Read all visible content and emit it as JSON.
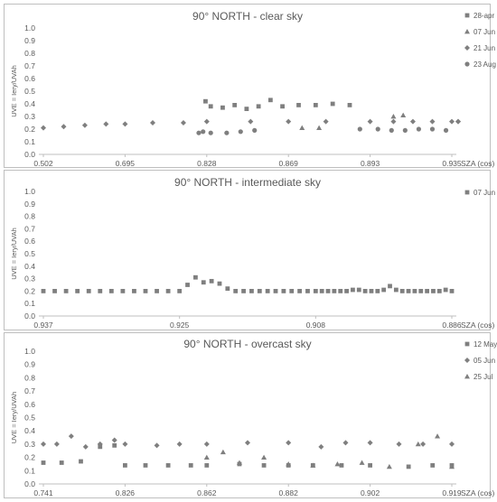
{
  "chart_data": [
    {
      "type": "scatter",
      "title": "90° NORTH - clear sky",
      "ylabel": "UVE = Iery/UVAh",
      "xlabel": "SZA (cos)",
      "ylim": [
        0,
        1.0
      ],
      "yticks": [
        "0.0",
        "0.1",
        "0.2",
        "0.3",
        "0.4",
        "0.5",
        "0.6",
        "0.7",
        "0.8",
        "0.9",
        "1.0"
      ],
      "xticks": [
        "0.502",
        "0.695",
        "0.828",
        "0.869",
        "0.893",
        "0.935"
      ],
      "legend_position": "right",
      "series": [
        {
          "name": "28-apr",
          "marker": "square",
          "color": "#7f7f7f",
          "x": [
            0.826,
            0.83,
            0.836,
            0.842,
            0.848,
            0.854,
            0.86,
            0.866,
            0.872,
            0.877,
            0.882,
            0.887
          ],
          "y": [
            0.42,
            0.38,
            0.37,
            0.39,
            0.36,
            0.38,
            0.43,
            0.38,
            0.39,
            0.39,
            0.4,
            0.39
          ]
        },
        {
          "name": "07 Jun",
          "marker": "triangle",
          "color": "#7f7f7f",
          "x": [
            0.873,
            0.878,
            0.905,
            0.91
          ],
          "y": [
            0.21,
            0.21,
            0.3,
            0.31
          ]
        },
        {
          "name": "21 Jun",
          "marker": "diamond",
          "color": "#7f7f7f",
          "x": [
            0.502,
            0.55,
            0.6,
            0.65,
            0.695,
            0.74,
            0.79,
            0.828,
            0.85,
            0.869,
            0.88,
            0.893,
            0.905,
            0.915,
            0.925,
            0.935,
            0.945,
            0.955
          ],
          "y": [
            0.21,
            0.22,
            0.23,
            0.24,
            0.24,
            0.25,
            0.25,
            0.26,
            0.26,
            0.26,
            0.26,
            0.26,
            0.26,
            0.26,
            0.26,
            0.26,
            0.26,
            0.26
          ]
        },
        {
          "name": "23 Aug",
          "marker": "circle",
          "color": "#7f7f7f",
          "x": [
            0.815,
            0.822,
            0.83,
            0.838,
            0.845,
            0.852,
            0.89,
            0.897,
            0.904,
            0.911,
            0.918,
            0.925,
            0.932
          ],
          "y": [
            0.17,
            0.18,
            0.17,
            0.17,
            0.18,
            0.19,
            0.2,
            0.2,
            0.19,
            0.19,
            0.2,
            0.2,
            0.19
          ]
        }
      ]
    },
    {
      "type": "scatter",
      "title": "90° NORTH - intermediate sky",
      "ylabel": "UVE = Iery/UVAh",
      "xlabel": "SZA (cos)",
      "ylim": [
        0,
        1.0
      ],
      "yticks": [
        "0.0",
        "0.1",
        "0.2",
        "0.3",
        "0.4",
        "0.5",
        "0.6",
        "0.7",
        "0.8",
        "0.9",
        "1.0"
      ],
      "xticks": [
        "0.937",
        "0.925",
        "0.908",
        "0.886"
      ],
      "legend_position": "right",
      "series": [
        {
          "name": "07 Jun",
          "marker": "square",
          "color": "#7f7f7f",
          "x": [
            0.937,
            0.936,
            0.935,
            0.934,
            0.933,
            0.932,
            0.931,
            0.93,
            0.929,
            0.928,
            0.927,
            0.926,
            0.925,
            0.924,
            0.923,
            0.922,
            0.921,
            0.92,
            0.919,
            0.918,
            0.917,
            0.916,
            0.915,
            0.914,
            0.913,
            0.912,
            0.911,
            0.91,
            0.909,
            0.908,
            0.907,
            0.906,
            0.905,
            0.904,
            0.903,
            0.902,
            0.901,
            0.9,
            0.899,
            0.898,
            0.897,
            0.896,
            0.895,
            0.894,
            0.893,
            0.892,
            0.891,
            0.89,
            0.889,
            0.888,
            0.887,
            0.886
          ],
          "y": [
            0.2,
            0.2,
            0.2,
            0.2,
            0.2,
            0.2,
            0.2,
            0.2,
            0.2,
            0.2,
            0.2,
            0.2,
            0.2,
            0.25,
            0.31,
            0.27,
            0.28,
            0.26,
            0.22,
            0.2,
            0.2,
            0.2,
            0.2,
            0.2,
            0.2,
            0.2,
            0.2,
            0.2,
            0.2,
            0.2,
            0.2,
            0.2,
            0.2,
            0.2,
            0.2,
            0.21,
            0.21,
            0.2,
            0.2,
            0.2,
            0.21,
            0.24,
            0.21,
            0.2,
            0.2,
            0.2,
            0.2,
            0.2,
            0.2,
            0.2,
            0.21,
            0.2
          ]
        }
      ]
    },
    {
      "type": "scatter",
      "title": "90° NORTH - overcast sky",
      "ylabel": "UVE = Iery/UVAh",
      "xlabel": "SZA (cos)",
      "ylim": [
        0,
        1.0
      ],
      "yticks": [
        "0.0",
        "0.1",
        "0.2",
        "0.3",
        "0.4",
        "0.5",
        "0.6",
        "0.7",
        "0.8",
        "0.9",
        "1.0"
      ],
      "xticks": [
        "0.741",
        "0.826",
        "0.862",
        "0.882",
        "0.902",
        "0.919"
      ],
      "legend_position": "right",
      "series": [
        {
          "name": "12 May",
          "marker": "square",
          "color": "#7f7f7f",
          "x": [
            0.741,
            0.76,
            0.78,
            0.8,
            0.815,
            0.826,
            0.835,
            0.845,
            0.855,
            0.862,
            0.87,
            0.876,
            0.882,
            0.888,
            0.895,
            0.902,
            0.91,
            0.915,
            0.919
          ],
          "y": [
            0.16,
            0.16,
            0.17,
            0.28,
            0.29,
            0.14,
            0.14,
            0.14,
            0.14,
            0.14,
            0.15,
            0.14,
            0.14,
            0.14,
            0.14,
            0.14,
            0.13,
            0.14,
            0.14
          ]
        },
        {
          "name": "05 Jun",
          "marker": "diamond",
          "color": "#7f7f7f",
          "x": [
            0.741,
            0.755,
            0.77,
            0.785,
            0.8,
            0.815,
            0.826,
            0.84,
            0.85,
            0.862,
            0.872,
            0.882,
            0.89,
            0.896,
            0.902,
            0.908,
            0.913,
            0.919
          ],
          "y": [
            0.3,
            0.3,
            0.36,
            0.28,
            0.3,
            0.33,
            0.3,
            0.29,
            0.3,
            0.3,
            0.31,
            0.31,
            0.28,
            0.31,
            0.31,
            0.3,
            0.3,
            0.3
          ]
        },
        {
          "name": "25 Jul",
          "marker": "triangle",
          "color": "#7f7f7f",
          "x": [
            0.862,
            0.866,
            0.87,
            0.876,
            0.882,
            0.888,
            0.894,
            0.9,
            0.906,
            0.912,
            0.916,
            0.919
          ],
          "y": [
            0.2,
            0.24,
            0.16,
            0.2,
            0.15,
            0.14,
            0.15,
            0.16,
            0.13,
            0.3,
            0.36,
            0.13
          ]
        }
      ]
    }
  ]
}
